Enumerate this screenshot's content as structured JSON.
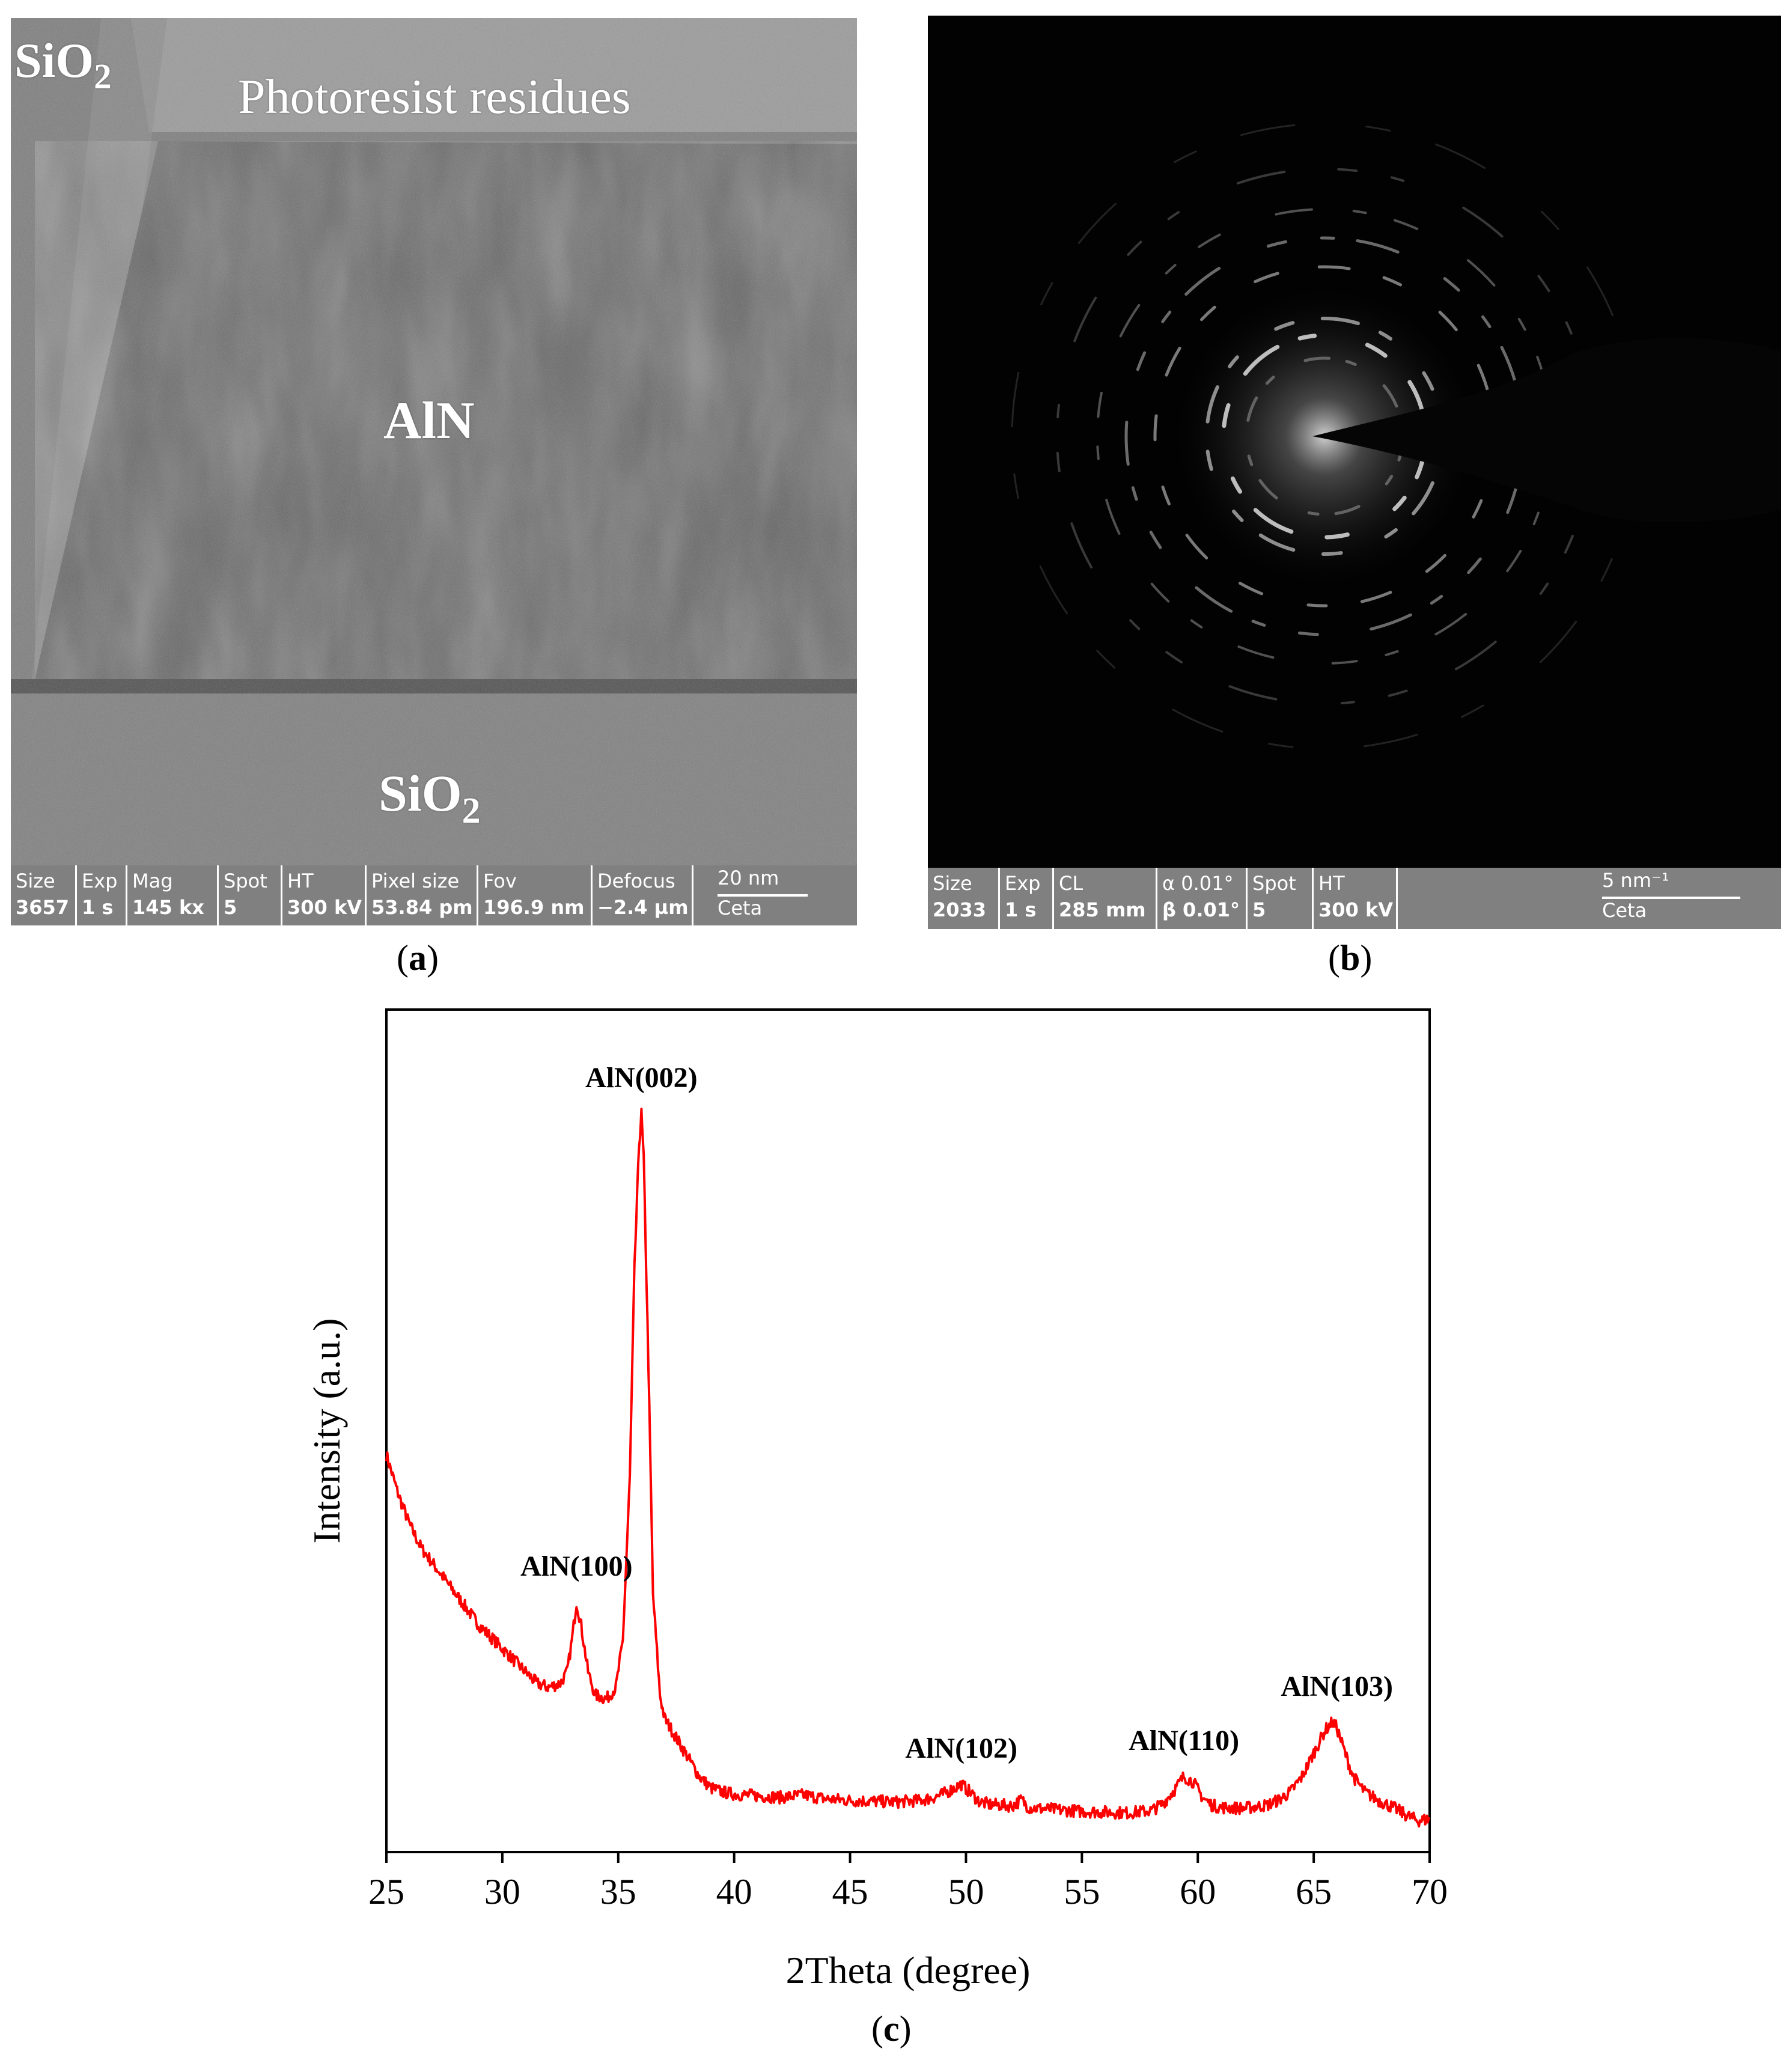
{
  "panel_a": {
    "letter": "a",
    "labels": {
      "sio2_top": "SiO",
      "photoresist": "Photoresist residues",
      "aln": "AlN",
      "sio2_bottom": "SiO",
      "subscript": "2"
    },
    "infobar": [
      {
        "label": "Size",
        "value": "3657"
      },
      {
        "label": "Exp",
        "value": "1 s"
      },
      {
        "label": "Mag",
        "value": "145 kx"
      },
      {
        "label": "Spot",
        "value": "5"
      },
      {
        "label": "HT",
        "value": "300 kV"
      },
      {
        "label": "Pixel size",
        "value": "53.84 pm"
      },
      {
        "label": "Fov",
        "value": "196.9 nm"
      },
      {
        "label": "Defocus",
        "value": "−2.4 µm"
      }
    ],
    "scale_text": "20 nm",
    "detector": "Ceta"
  },
  "panel_b": {
    "letter": "b",
    "infobar": [
      {
        "label": "Size",
        "value": "2033"
      },
      {
        "label": "Exp",
        "value": "1 s"
      },
      {
        "label": "CL",
        "value": "285 mm"
      },
      {
        "label": "α 0.01°",
        "value": "β 0.01°"
      },
      {
        "label": "Spot",
        "value": "5"
      },
      {
        "label": "HT",
        "value": "300 kV"
      }
    ],
    "scale_text": "5 nm⁻¹",
    "detector": "Ceta"
  },
  "panel_c": {
    "letter": "c"
  },
  "chart_data": {
    "type": "line",
    "title": "",
    "xlabel": "2Theta (degree)",
    "ylabel": "Intensity (a.u.)",
    "xlim": [
      25,
      70
    ],
    "ylim": [
      0,
      100
    ],
    "xticks": [
      25,
      30,
      35,
      40,
      45,
      50,
      55,
      60,
      65,
      70
    ],
    "yticks_shown": false,
    "line_color": "#ff0000",
    "series": [
      {
        "x": [
          25,
          25.5,
          26,
          26.5,
          27,
          27.5,
          28,
          28.5,
          29,
          29.5,
          30,
          30.5,
          31,
          31.5,
          32,
          32.5,
          32.8,
          33.0,
          33.2,
          33.4,
          33.7,
          34.0,
          34.5,
          34.9,
          35.2,
          35.5,
          35.7,
          35.9,
          36.0,
          36.1,
          36.3,
          36.5,
          36.8,
          37.0,
          37.5,
          38.0,
          38.5,
          39.0,
          39.5,
          40,
          41,
          42,
          43,
          44,
          45,
          46,
          47,
          48,
          48.5,
          49,
          49.5,
          49.8,
          50.2,
          50.6,
          51,
          52,
          52.4,
          52.7,
          53,
          54,
          55,
          56,
          57,
          58,
          58.5,
          59,
          59.4,
          59.8,
          60.2,
          60.6,
          61,
          62,
          63,
          63.5,
          64,
          64.5,
          65,
          65.5,
          65.8,
          66.0,
          66.3,
          66.7,
          67.2,
          67.8,
          68.5,
          69,
          69.5,
          70
        ],
        "y": [
          48,
          43,
          39,
          36,
          34,
          32,
          30,
          28,
          26,
          24.5,
          23,
          21.5,
          20,
          18.5,
          18,
          18.5,
          20,
          24,
          29,
          26,
          20,
          17,
          16.5,
          18,
          24,
          45,
          72,
          88,
          92,
          86,
          60,
          30,
          17,
          14,
          11.5,
          9,
          6.5,
          5,
          4.5,
          4.2,
          4,
          3.8,
          4.1,
          3.6,
          3.4,
          3.3,
          3.2,
          3.4,
          3.7,
          4.2,
          5.0,
          5.5,
          4.4,
          3.2,
          2.9,
          2.7,
          3.5,
          2.5,
          2.4,
          2.2,
          2.0,
          1.9,
          1.8,
          2.1,
          3.0,
          4.8,
          6.5,
          5.8,
          3.8,
          2.8,
          2.5,
          2.4,
          2.8,
          3.5,
          4.5,
          6.5,
          9.5,
          12.5,
          13.5,
          12.8,
          10,
          6.5,
          4.5,
          3.4,
          2.4,
          1.5,
          0.8,
          1.0
        ]
      }
    ],
    "annotations": [
      {
        "text": "AlN(002)",
        "x": 36.0,
        "y": 92
      },
      {
        "text": "AlN(100)",
        "x": 33.2,
        "y": 29
      },
      {
        "text": "AlN(102)",
        "x": 49.8,
        "y": 5.5
      },
      {
        "text": "AlN(110)",
        "x": 59.4,
        "y": 6.5
      },
      {
        "text": "AlN(103)",
        "x": 66.0,
        "y": 13.5
      }
    ]
  }
}
